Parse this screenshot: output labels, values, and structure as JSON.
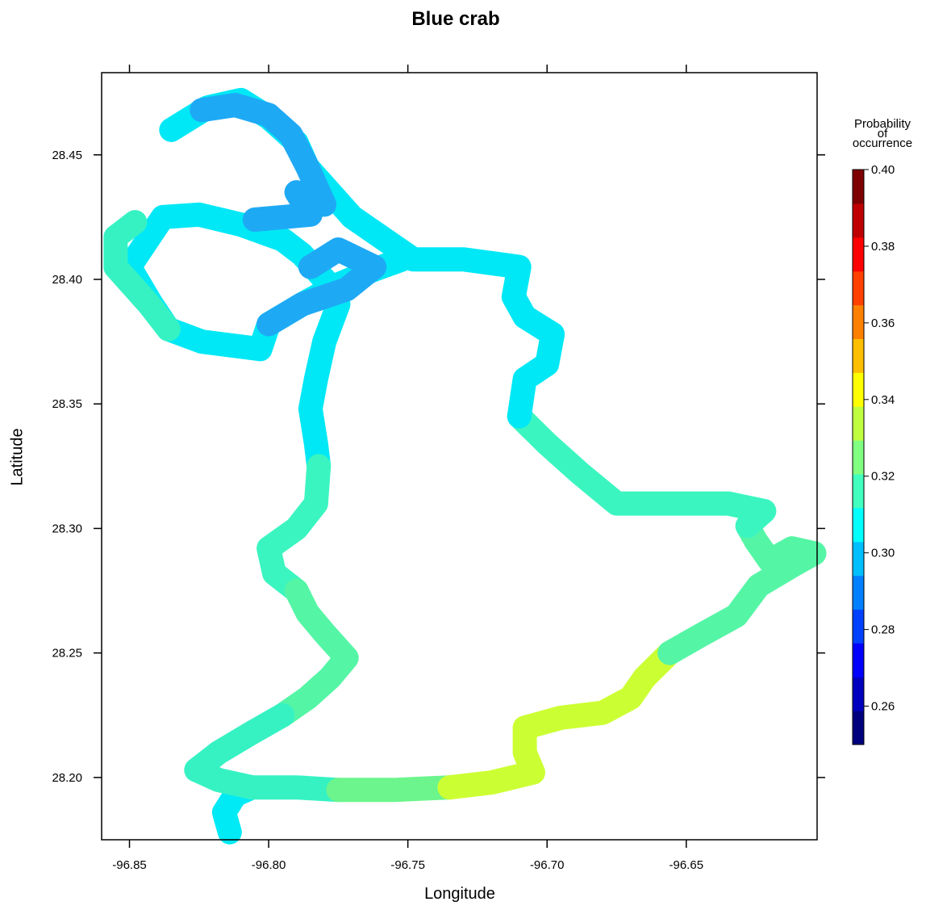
{
  "chart_data": {
    "type": "heatmap",
    "title": "Blue crab",
    "xlabel": "Longitude",
    "ylabel": "Latitude",
    "xlim": [
      -96.86,
      -96.603
    ],
    "ylim": [
      28.175,
      28.483
    ],
    "x_ticks": [
      "-96.85",
      "-96.80",
      "-96.75",
      "-96.70",
      "-96.65"
    ],
    "x_tick_values": [
      -96.85,
      -96.8,
      -96.75,
      -96.7,
      -96.65
    ],
    "y_ticks": [
      "28.45",
      "28.40",
      "28.35",
      "28.30",
      "28.25",
      "28.20"
    ],
    "y_tick_values": [
      28.45,
      28.4,
      28.35,
      28.3,
      28.25,
      28.2
    ],
    "colorbar": {
      "title_lines": [
        "Probability",
        "of",
        "occurrence"
      ],
      "range": [
        0.25,
        0.4
      ],
      "tick_labels": [
        "0.40",
        "0.38",
        "0.36",
        "0.34",
        "0.32",
        "0.30",
        "0.28",
        "0.26"
      ],
      "tick_values": [
        0.4,
        0.38,
        0.36,
        0.34,
        0.32,
        0.3,
        0.28,
        0.26
      ],
      "band_colors": [
        "#00007F",
        "#0000BF",
        "#0000FF",
        "#0040FF",
        "#0080FF",
        "#00BFFF",
        "#00FFFF",
        "#40FFBF",
        "#80FF80",
        "#BFFF40",
        "#FFFF00",
        "#FFBF00",
        "#FF8000",
        "#FF4000",
        "#FF0000",
        "#BF0000",
        "#7F0000"
      ]
    },
    "segments": [
      {
        "value": 0.305,
        "color": "#00EAF5",
        "path": [
          [
            -96.814,
            28.178
          ],
          [
            -96.816,
            28.186
          ],
          [
            -96.812,
            28.193
          ],
          [
            -96.806,
            28.196
          ]
        ]
      },
      {
        "value": 0.315,
        "color": "#36F2C3",
        "path": [
          [
            -96.806,
            28.196
          ],
          [
            -96.79,
            28.196
          ],
          [
            -96.775,
            28.195
          ]
        ]
      },
      {
        "value": 0.325,
        "color": "#6BF58C",
        "path": [
          [
            -96.775,
            28.195
          ],
          [
            -96.755,
            28.195
          ],
          [
            -96.735,
            28.196
          ]
        ]
      },
      {
        "value": 0.335,
        "color": "#CCFF33",
        "path": [
          [
            -96.735,
            28.196
          ],
          [
            -96.72,
            28.198
          ],
          [
            -96.705,
            28.202
          ],
          [
            -96.708,
            28.21
          ],
          [
            -96.708,
            28.22
          ],
          [
            -96.695,
            28.224
          ],
          [
            -96.68,
            28.226
          ],
          [
            -96.67,
            28.232
          ],
          [
            -96.665,
            28.24
          ],
          [
            -96.656,
            28.25
          ]
        ]
      },
      {
        "value": 0.32,
        "color": "#55F5A6",
        "path": [
          [
            -96.656,
            28.25
          ],
          [
            -96.645,
            28.257
          ],
          [
            -96.632,
            28.265
          ],
          [
            -96.624,
            28.277
          ],
          [
            -96.612,
            28.285
          ],
          [
            -96.604,
            28.29
          ],
          [
            -96.612,
            28.292
          ],
          [
            -96.62,
            28.287
          ],
          [
            -96.625,
            28.295
          ],
          [
            -96.628,
            28.301
          ]
        ]
      },
      {
        "value": 0.313,
        "color": "#3BF5C0",
        "path": [
          [
            -96.628,
            28.301
          ],
          [
            -96.622,
            28.307
          ],
          [
            -96.635,
            28.31
          ],
          [
            -96.652,
            28.31
          ],
          [
            -96.665,
            28.31
          ],
          [
            -96.675,
            28.31
          ],
          [
            -96.688,
            28.322
          ],
          [
            -96.7,
            28.334
          ],
          [
            -96.71,
            28.345
          ]
        ]
      },
      {
        "value": 0.305,
        "color": "#00E8F5",
        "path": [
          [
            -96.71,
            28.345
          ],
          [
            -96.708,
            28.36
          ],
          [
            -96.7,
            28.366
          ],
          [
            -96.698,
            28.378
          ],
          [
            -96.708,
            28.385
          ],
          [
            -96.712,
            28.393
          ],
          [
            -96.71,
            28.405
          ],
          [
            -96.73,
            28.408
          ],
          [
            -96.748,
            28.408
          ],
          [
            -96.77,
            28.425
          ],
          [
            -96.786,
            28.445
          ],
          [
            -96.79,
            28.455
          ],
          [
            -96.8,
            28.465
          ],
          [
            -96.81,
            28.472
          ],
          [
            -96.822,
            28.469
          ],
          [
            -96.835,
            28.46
          ]
        ]
      },
      {
        "value": 0.305,
        "color": "#00E8F5",
        "path": [
          [
            -96.752,
            28.408
          ],
          [
            -96.762,
            28.404
          ],
          [
            -96.775,
            28.398
          ],
          [
            -96.788,
            28.39
          ],
          [
            -96.8,
            28.382
          ],
          [
            -96.803,
            28.372
          ],
          [
            -96.81,
            28.373
          ],
          [
            -96.824,
            28.375
          ],
          [
            -96.836,
            28.38
          ],
          [
            -96.842,
            28.39
          ],
          [
            -96.85,
            28.405
          ],
          [
            -96.838,
            28.425
          ],
          [
            -96.825,
            28.426
          ],
          [
            -96.81,
            28.422
          ],
          [
            -96.795,
            28.416
          ],
          [
            -96.788,
            28.41
          ],
          [
            -96.78,
            28.4
          ],
          [
            -96.775,
            28.39
          ],
          [
            -96.78,
            28.375
          ],
          [
            -96.783,
            28.36
          ],
          [
            -96.785,
            28.348
          ],
          [
            -96.783,
            28.334
          ],
          [
            -96.782,
            28.325
          ]
        ]
      },
      {
        "value": 0.315,
        "color": "#36F2C3",
        "path": [
          [
            -96.836,
            28.38
          ],
          [
            -96.843,
            28.39
          ],
          [
            -96.855,
            28.405
          ],
          [
            -96.855,
            28.417
          ],
          [
            -96.848,
            28.423
          ]
        ]
      },
      {
        "value": 0.313,
        "color": "#3BF5C0",
        "path": [
          [
            -96.782,
            28.325
          ],
          [
            -96.783,
            28.31
          ],
          [
            -96.79,
            28.3
          ],
          [
            -96.8,
            28.292
          ],
          [
            -96.798,
            28.282
          ],
          [
            -96.79,
            28.275
          ]
        ]
      },
      {
        "value": 0.32,
        "color": "#55F5A6",
        "path": [
          [
            -96.79,
            28.275
          ],
          [
            -96.786,
            28.266
          ],
          [
            -96.78,
            28.258
          ],
          [
            -96.772,
            28.248
          ],
          [
            -96.778,
            28.24
          ],
          [
            -96.786,
            28.232
          ],
          [
            -96.795,
            28.225
          ]
        ]
      },
      {
        "value": 0.315,
        "color": "#36F2C3",
        "path": [
          [
            -96.795,
            28.225
          ],
          [
            -96.806,
            28.218
          ],
          [
            -96.818,
            28.21
          ],
          [
            -96.826,
            28.203
          ],
          [
            -96.818,
            28.199
          ],
          [
            -96.806,
            28.196
          ]
        ]
      },
      {
        "value": 0.29,
        "color": "#1EA9F5",
        "path": [
          [
            -96.8,
            28.382
          ],
          [
            -96.788,
            28.39
          ],
          [
            -96.772,
            28.396
          ],
          [
            -96.762,
            28.405
          ],
          [
            -96.775,
            28.412
          ],
          [
            -96.785,
            28.405
          ]
        ]
      },
      {
        "value": 0.29,
        "color": "#1EA9F5",
        "path": [
          [
            -96.824,
            28.468
          ],
          [
            -96.812,
            28.47
          ],
          [
            -96.8,
            28.466
          ],
          [
            -96.792,
            28.458
          ],
          [
            -96.786,
            28.445
          ],
          [
            -96.78,
            28.43
          ]
        ]
      },
      {
        "value": 0.29,
        "color": "#1EA9F5",
        "path": [
          [
            -96.805,
            28.424
          ],
          [
            -96.795,
            28.425
          ],
          [
            -96.785,
            28.426
          ],
          [
            -96.79,
            28.435
          ]
        ]
      }
    ]
  }
}
